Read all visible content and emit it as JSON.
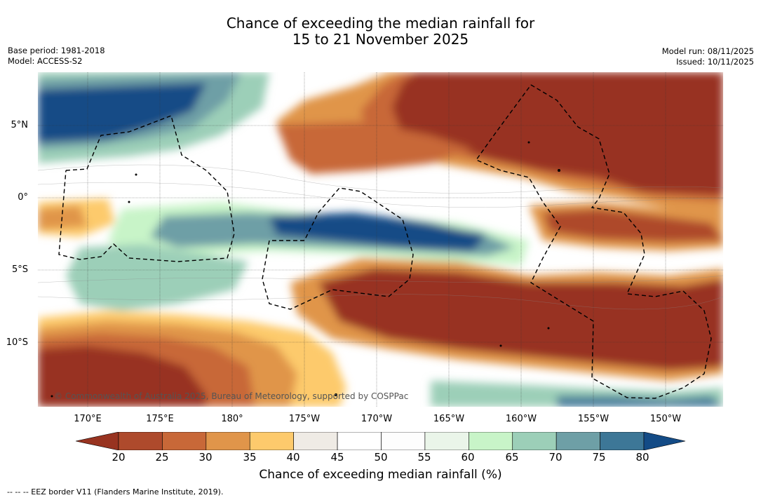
{
  "title": {
    "line1": "Chance of exceeding the median rainfall for",
    "line2": "15 to 21 November 2025"
  },
  "meta": {
    "base_period": "Base period: 1981-2018",
    "model": "Model: ACCESS-S2",
    "model_run": "Model run: 08/11/2025",
    "issued": "Issued: 10/11/2025"
  },
  "map": {
    "lat_labels": [
      "5°N",
      "0°",
      "5°S",
      "10°S"
    ],
    "lon_labels": [
      "170°E",
      "175°E",
      "180°",
      "175°W",
      "170°W",
      "165°W",
      "160°W",
      "155°W",
      "150°W"
    ],
    "copyright": "© Commonwealth of Australia 2025, Bureau of Meteorology, supported by COSPPac"
  },
  "colorbar": {
    "ticks": [
      "20",
      "25",
      "30",
      "35",
      "40",
      "45",
      "50",
      "55",
      "60",
      "65",
      "70",
      "75",
      "80"
    ],
    "colors": [
      "#983320",
      "#ae4a2c",
      "#c86838",
      "#e0954a",
      "#fdca6c",
      "#efebe5",
      "#ffffff",
      "#fdfdfd",
      "#eaf5e9",
      "#c8f4c8",
      "#9ccfb8",
      "#6e9fa6",
      "#3d7797"
    ],
    "low_color": "#983320",
    "high_color": "#134b86",
    "title": "Chance of exceeding median rainfall (%)"
  },
  "footnote": "--  --  -- EEZ border V11 (Flanders Marine Institute, 2019)."
}
